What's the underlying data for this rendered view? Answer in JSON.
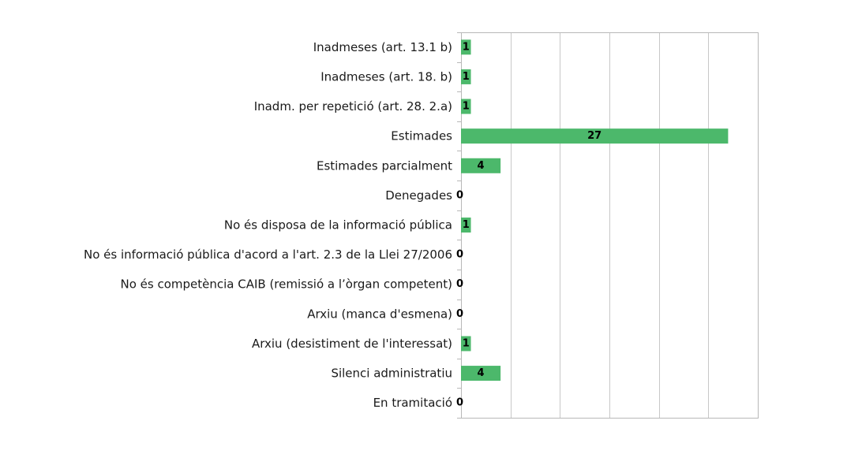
{
  "chart_data": {
    "type": "bar",
    "orientation": "horizontal",
    "categories": [
      "Inadmeses (art. 13.1 b)",
      "Inadmeses (art. 18. b)",
      "Inadm. per repetició (art. 28. 2.a)",
      "Estimades",
      "Estimades parcialment",
      "Denegades",
      "No és disposa de la informació pública",
      "No és informació pública d'acord a l'art. 2.3 de la Llei 27/2006",
      "No és competència CAIB (remissió a l’òrgan competent)",
      "Arxiu (manca d'esmena)",
      "Arxiu (desistiment de l'interessat)",
      "Silenci administratiu",
      "En tramitació"
    ],
    "values": [
      1,
      1,
      1,
      27,
      4,
      0,
      1,
      0,
      0,
      0,
      1,
      4,
      0
    ],
    "xlim": [
      0,
      30
    ],
    "grid": true,
    "bar_color": "#4cb86b",
    "data_labels": true
  }
}
